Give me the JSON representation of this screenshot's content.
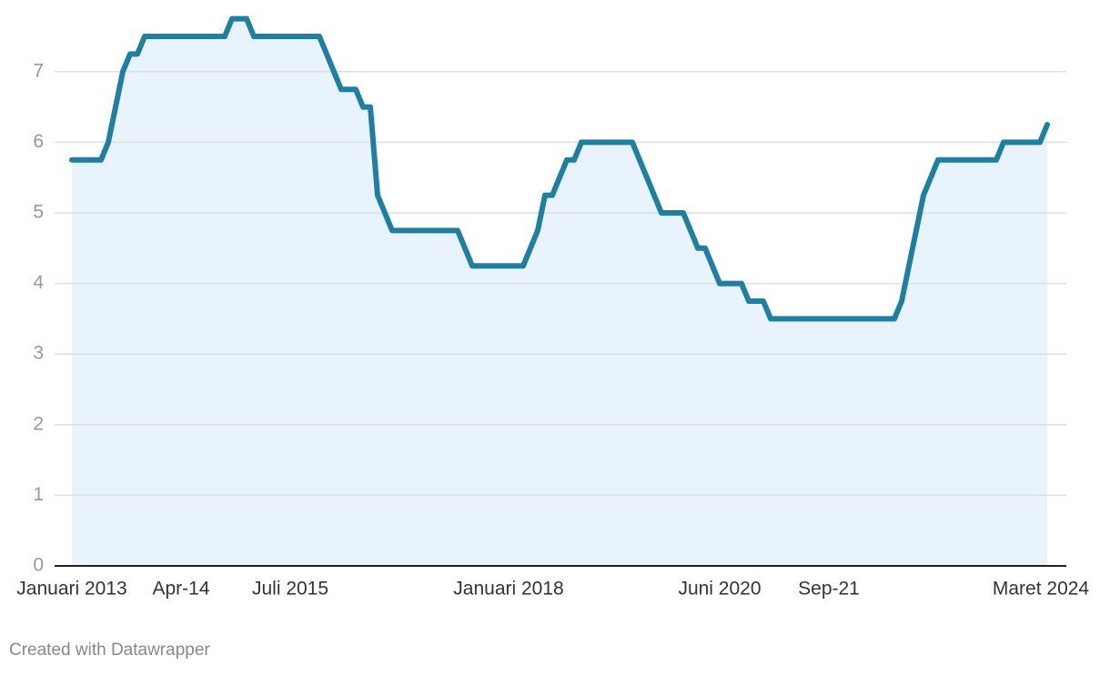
{
  "chart_data": {
    "type": "line",
    "categories": [
      "Januari 2013",
      null,
      null,
      null,
      null,
      null,
      null,
      null,
      null,
      null,
      null,
      null,
      null,
      null,
      null,
      "Apr-14",
      null,
      null,
      null,
      null,
      null,
      null,
      null,
      null,
      null,
      null,
      null,
      null,
      null,
      null,
      "Juli 2015",
      null,
      null,
      null,
      null,
      null,
      null,
      null,
      null,
      null,
      null,
      null,
      null,
      null,
      null,
      null,
      null,
      null,
      null,
      null,
      null,
      null,
      null,
      null,
      null,
      null,
      null,
      null,
      null,
      null,
      "Januari 2018",
      null,
      null,
      null,
      null,
      null,
      null,
      null,
      null,
      null,
      null,
      null,
      null,
      null,
      null,
      null,
      null,
      null,
      null,
      null,
      null,
      null,
      null,
      null,
      null,
      null,
      null,
      null,
      null,
      "Juni 2020",
      null,
      null,
      null,
      null,
      null,
      null,
      null,
      null,
      null,
      null,
      null,
      null,
      null,
      null,
      "Sep-21",
      null,
      null,
      null,
      null,
      null,
      null,
      null,
      null,
      null,
      null,
      null,
      null,
      null,
      null,
      null,
      null,
      null,
      null,
      null,
      null,
      null,
      null,
      null,
      null,
      null,
      null,
      null,
      null,
      null,
      "Maret 2024"
    ],
    "series": [
      {
        "name": null,
        "color": "#1d7fa1",
        "fill": "#e9f3fd",
        "values": [
          5.75,
          5.75,
          5.75,
          5.75,
          5.75,
          6,
          6.5,
          7,
          7.25,
          7.25,
          7.5,
          7.5,
          7.5,
          7.5,
          7.5,
          7.5,
          7.5,
          7.5,
          7.5,
          7.5,
          7.5,
          7.5,
          7.75,
          7.75,
          7.75,
          7.5,
          7.5,
          7.5,
          7.5,
          7.5,
          7.5,
          7.5,
          7.5,
          7.5,
          7.5,
          7.25,
          7,
          6.75,
          6.75,
          6.75,
          6.5,
          6.5,
          5.25,
          5,
          4.75,
          4.75,
          4.75,
          4.75,
          4.75,
          4.75,
          4.75,
          4.75,
          4.75,
          4.75,
          4.5,
          4.25,
          4.25,
          4.25,
          4.25,
          4.25,
          4.25,
          4.25,
          4.25,
          4.5,
          4.75,
          5.25,
          5.25,
          5.5,
          5.75,
          5.75,
          6,
          6,
          6,
          6,
          6,
          6,
          6,
          6,
          5.75,
          5.5,
          5.25,
          5,
          5,
          5,
          5,
          4.75,
          4.5,
          4.5,
          4.25,
          4,
          4,
          4,
          4,
          3.75,
          3.75,
          3.75,
          3.5,
          3.5,
          3.5,
          3.5,
          3.5,
          3.5,
          3.5,
          3.5,
          3.5,
          3.5,
          3.5,
          3.5,
          3.5,
          3.5,
          3.5,
          3.5,
          3.5,
          3.5,
          3.75,
          4.25,
          4.75,
          5.25,
          5.5,
          5.75,
          5.75,
          5.75,
          5.75,
          5.75,
          5.75,
          5.75,
          5.75,
          5.75,
          6,
          6,
          6,
          6,
          6,
          6,
          6.25
        ]
      }
    ],
    "ylim": [
      0,
      8
    ],
    "yticks": [
      0,
      1,
      2,
      3,
      4,
      5,
      6,
      7
    ],
    "grid": true
  },
  "credit": "Created with Datawrapper"
}
